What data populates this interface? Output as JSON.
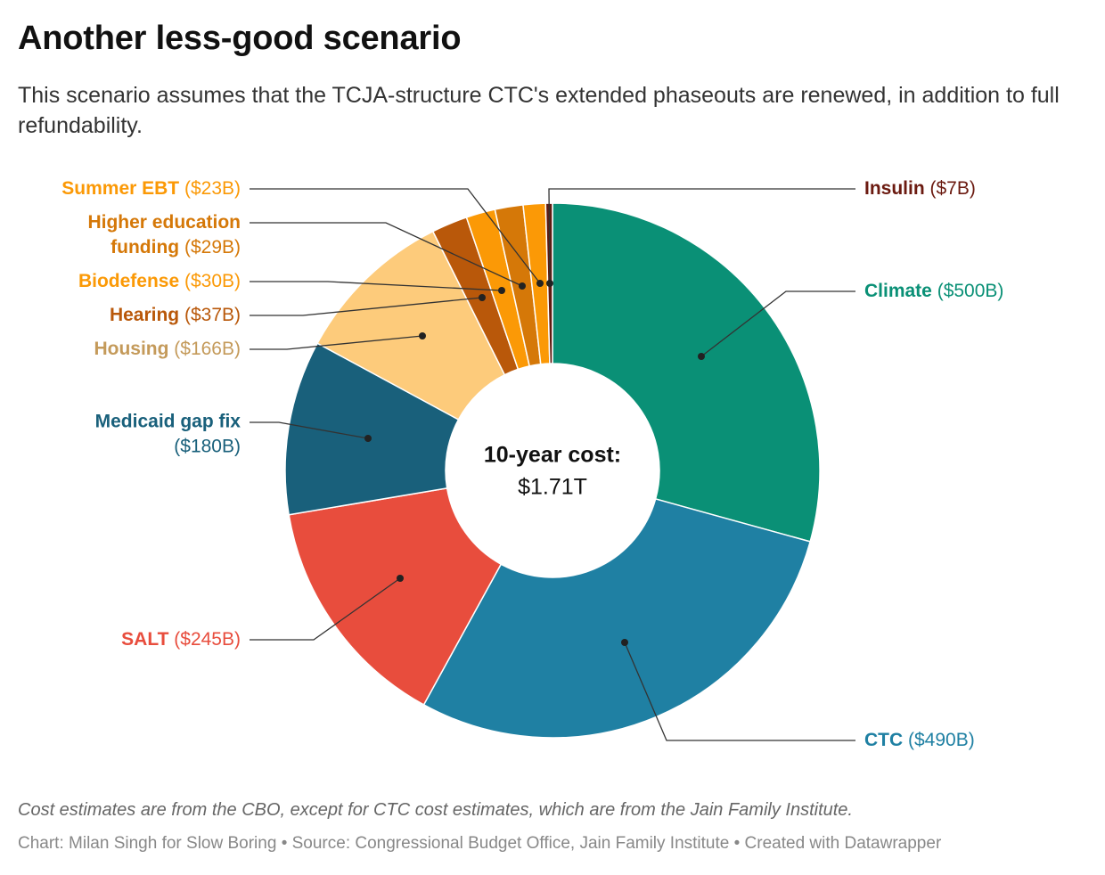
{
  "header": {
    "title": "Another less-good scenario",
    "subtitle": "This scenario assumes that the TCJA-structure CTC's extended phaseouts are renewed, in addition to full refundability."
  },
  "chart_data": {
    "type": "pie",
    "variant": "donut",
    "center_label": {
      "title": "10-year cost:",
      "value": "$1.71T"
    },
    "unit": "billion USD",
    "slices": [
      {
        "name": "Climate",
        "value": 500,
        "value_label": "($500B)",
        "color": "#0a9076"
      },
      {
        "name": "CTC",
        "value": 490,
        "value_label": "($490B)",
        "color": "#1f80a3"
      },
      {
        "name": "SALT",
        "value": 245,
        "value_label": "($245B)",
        "color": "#e84d3d"
      },
      {
        "name": "Medicaid gap fix",
        "value": 180,
        "value_label": "($180B)",
        "color": "#19607b"
      },
      {
        "name": "Housing",
        "value": 166,
        "value_label": "($166B)",
        "color": "#fdcb7b"
      },
      {
        "name": "Hearing",
        "value": 37,
        "value_label": "($37B)",
        "color": "#b9580a"
      },
      {
        "name": "Biodefense",
        "value": 30,
        "value_label": "($30B)",
        "color": "#fb9906"
      },
      {
        "name": "Higher education funding",
        "value": 29,
        "value_label": "($29B)",
        "color": "#d57808"
      },
      {
        "name": "Summer EBT",
        "value": 23,
        "value_label": "($23B)",
        "color": "#fb9906"
      },
      {
        "name": "Insulin",
        "value": 7,
        "value_label": "($7B)",
        "color": "#5f1a10"
      }
    ]
  },
  "footer": {
    "note": "Cost estimates are from the CBO, except for CTC cost estimates, which are from the Jain Family Institute.",
    "credit": "Chart: Milan Singh for Slow Boring • Source: Congressional Budget Office, Jain Family Institute • Created with Datawrapper"
  }
}
